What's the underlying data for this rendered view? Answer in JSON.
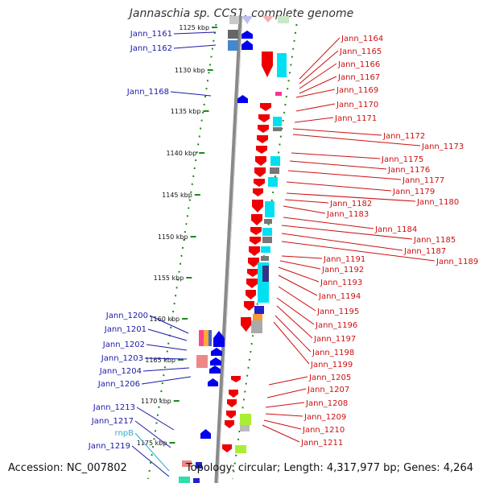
{
  "title": "Jannaschia sp. CCS1, complete genome",
  "footer": {
    "accession": "Accession: NC_007802",
    "summary": "Topology: circular; Length: 4,317,977 bp; Genes: 4,264"
  },
  "colors": {
    "backbone": "#8a8a8a",
    "left_label": "#1a1aa8",
    "right_label": "#cc1111",
    "rna_label": "#33aacc",
    "tick": "#1a8a1a",
    "forward_gene": "#0000ee",
    "reverse_gene": "#ee0000",
    "cog_cyan": "#00e0f0"
  },
  "kbp_ticks": [
    {
      "label": "1125 kbp"
    },
    {
      "label": "1130 kbp"
    },
    {
      "label": "1135 kbp"
    },
    {
      "label": "1140 kbp"
    },
    {
      "label": "1145 kbp"
    },
    {
      "label": "1150 kbp"
    },
    {
      "label": "1155 kbp"
    },
    {
      "label": "1160 kbp"
    },
    {
      "label": "1165 kbp"
    },
    {
      "label": "1170 kbp"
    },
    {
      "label": "1175 kbp"
    }
  ],
  "left_genes": [
    {
      "label": "Jann_1161",
      "kind": "protein"
    },
    {
      "label": "Jann_1162",
      "kind": "protein"
    },
    {
      "label": "Jann_1168",
      "kind": "protein"
    },
    {
      "label": "Jann_1200",
      "kind": "protein"
    },
    {
      "label": "Jann_1201",
      "kind": "protein"
    },
    {
      "label": "Jann_1202",
      "kind": "protein"
    },
    {
      "label": "Jann_1203",
      "kind": "protein"
    },
    {
      "label": "Jann_1204",
      "kind": "protein"
    },
    {
      "label": "Jann_1206",
      "kind": "protein"
    },
    {
      "label": "Jann_1213",
      "kind": "protein"
    },
    {
      "label": "Jann_1217",
      "kind": "protein"
    },
    {
      "label": "rnpB",
      "kind": "rna"
    },
    {
      "label": "Jann_1219",
      "kind": "protein"
    }
  ],
  "right_genes": [
    {
      "label": "Jann_1164"
    },
    {
      "label": "Jann_1165"
    },
    {
      "label": "Jann_1166"
    },
    {
      "label": "Jann_1167"
    },
    {
      "label": "Jann_1169"
    },
    {
      "label": "Jann_1170"
    },
    {
      "label": "Jann_1171"
    },
    {
      "label": "Jann_1172"
    },
    {
      "label": "Jann_1173"
    },
    {
      "label": "Jann_1175"
    },
    {
      "label": "Jann_1176"
    },
    {
      "label": "Jann_1177"
    },
    {
      "label": "Jann_1179"
    },
    {
      "label": "Jann_1180"
    },
    {
      "label": "Jann_1182"
    },
    {
      "label": "Jann_1183"
    },
    {
      "label": "Jann_1184"
    },
    {
      "label": "Jann_1185"
    },
    {
      "label": "Jann_1187"
    },
    {
      "label": "Jann_1189"
    },
    {
      "label": "Jann_1191"
    },
    {
      "label": "Jann_1192"
    },
    {
      "label": "Jann_1193"
    },
    {
      "label": "Jann_1194"
    },
    {
      "label": "Jann_1195"
    },
    {
      "label": "Jann_1196"
    },
    {
      "label": "Jann_1197"
    },
    {
      "label": "Jann_1198"
    },
    {
      "label": "Jann_1199"
    },
    {
      "label": "Jann_1205"
    },
    {
      "label": "Jann_1207"
    },
    {
      "label": "Jann_1208"
    },
    {
      "label": "Jann_1209"
    },
    {
      "label": "Jann_1210"
    },
    {
      "label": "Jann_1211"
    }
  ]
}
